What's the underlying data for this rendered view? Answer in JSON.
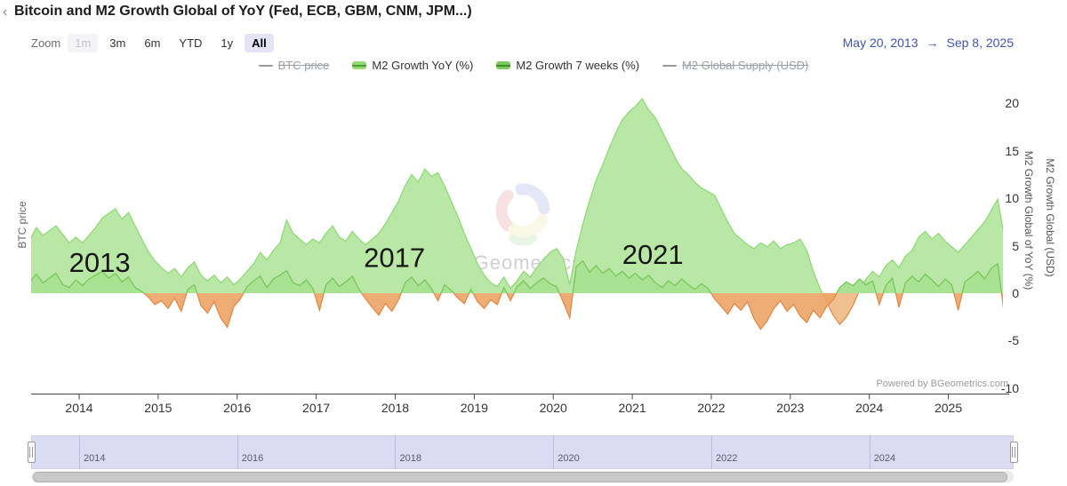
{
  "header": {
    "back_chevron": "‹",
    "title": "Bitcoin and M2 Growth Global of YoY (Fed, ECB, GBM, CNM, JPM...)"
  },
  "toolbar": {
    "zoom_label": "Zoom",
    "buttons": [
      {
        "label": "1m",
        "state": "disabled"
      },
      {
        "label": "3m",
        "state": "normal"
      },
      {
        "label": "6m",
        "state": "normal"
      },
      {
        "label": "YTD",
        "state": "normal"
      },
      {
        "label": "1y",
        "state": "normal"
      },
      {
        "label": "All",
        "state": "selected"
      }
    ],
    "range_from": "May 20, 2013",
    "range_arrow": "→",
    "range_to": "Sep 8, 2025",
    "range_color": "#4052b4"
  },
  "legend": {
    "items": [
      {
        "label": "BTC price",
        "marker": "line",
        "enabled": false,
        "color": "#9a9a9a"
      },
      {
        "label": "M2 Growth YoY (%)",
        "marker": "area",
        "enabled": true,
        "color": "#93d977",
        "line_color": "#4f9a34"
      },
      {
        "label": "M2 Growth 7 weeks (%)",
        "marker": "area",
        "enabled": true,
        "color": "#7ccb5e",
        "line_color": "#3f8c28"
      },
      {
        "label": "M2 Global Supply (USD)",
        "marker": "line",
        "enabled": false,
        "color": "#9a9a9a"
      }
    ]
  },
  "axes": {
    "left_title": "BTC price",
    "right_title_inner": "M2 Growth Global of YoY (%)",
    "right_title_outer": "M2 Growth Global (USD)"
  },
  "watermark": {
    "text": "BGeometrics",
    "text_color": "#c9cec9",
    "blade_colors": [
      "#ccd1ee",
      "#f2c4c8",
      "#f5f1cd",
      "#d5ecce"
    ]
  },
  "powered_by": "Powered by BGeometrics.com",
  "chart_data": {
    "type": "area",
    "title": "Bitcoin and M2 Growth Global of YoY (Fed, ECB, GBM, CNM, JPM...)",
    "x_unit": "decimal_year",
    "x_start_year": 2013.375,
    "x_step_years": 0.083333,
    "x_axis_ticks": [
      2014,
      2015,
      2016,
      2017,
      2018,
      2019,
      2020,
      2021,
      2022,
      2023,
      2024,
      2025
    ],
    "y_axis_ticks": [
      20,
      15,
      10,
      5,
      0,
      -5,
      -10
    ],
    "ylim": [
      -10,
      22
    ],
    "legend_position": "top-center",
    "grid": false,
    "annotations": [
      {
        "label": "2013",
        "x": 2014.26,
        "y": 3.3
      },
      {
        "label": "2017",
        "x": 2017.99,
        "y": 3.8
      },
      {
        "label": "2021",
        "x": 2021.26,
        "y": 4.1
      }
    ],
    "navigator_years": [
      2014,
      2016,
      2018,
      2020,
      2022,
      2024
    ],
    "series": [
      {
        "name": "BTC price",
        "type": "line",
        "visible": false,
        "color": "#9a9a9a",
        "values": []
      },
      {
        "name": "M2 Growth YoY (%)",
        "type": "area",
        "visible": true,
        "color_line": "#90d977",
        "color_fill": "#b9e8a6",
        "negative_line": "#e28a4a",
        "negative_fill": "#f0b984",
        "values": [
          5.6,
          6.9,
          6.1,
          6.6,
          7.1,
          6.2,
          5.3,
          5.9,
          5.3,
          6.1,
          6.9,
          7.9,
          8.4,
          8.9,
          7.8,
          8.5,
          7.1,
          5.7,
          4.4,
          3.4,
          2.7,
          2.1,
          2.6,
          1.7,
          2.7,
          3.3,
          1.9,
          1.3,
          1.9,
          1.1,
          1.7,
          0.9,
          1.5,
          2.3,
          3.1,
          4.3,
          3.5,
          4.5,
          5.3,
          7.7,
          6.3,
          5.7,
          5.1,
          5.7,
          5.3,
          6.3,
          7.1,
          5.9,
          5.5,
          6.5,
          5.7,
          5.1,
          5.7,
          6.3,
          7.3,
          8.5,
          9.7,
          11.3,
          12.5,
          11.7,
          13.1,
          12.3,
          12.7,
          11.3,
          9.7,
          8.1,
          6.3,
          4.7,
          3.1,
          1.9,
          1.1,
          0.7,
          1.7,
          0.5,
          1.3,
          2.3,
          1.7,
          2.7,
          3.5,
          4.3,
          4.7,
          3.7,
          0.9,
          4.5,
          7.3,
          9.7,
          11.9,
          13.5,
          15.3,
          16.9,
          18.3,
          19.1,
          19.7,
          20.5,
          19.3,
          18.5,
          17.1,
          15.7,
          14.3,
          13.1,
          12.5,
          11.7,
          11.1,
          10.7,
          10.3,
          8.9,
          7.5,
          6.3,
          5.7,
          5.1,
          4.7,
          5.3,
          4.9,
          5.5,
          4.7,
          5.1,
          5.3,
          5.7,
          4.5,
          2.3,
          0.5,
          -0.9,
          -2.3,
          -3.3,
          -2.5,
          -1.3,
          0.3,
          1.5,
          2.3,
          1.7,
          2.9,
          3.5,
          2.7,
          3.9,
          4.5,
          5.9,
          6.5,
          5.7,
          6.3,
          5.5,
          4.9,
          4.3,
          5.1,
          5.9,
          6.7,
          7.5,
          8.7,
          9.9,
          5.9
        ]
      },
      {
        "name": "M2 Growth 7 weeks (%)",
        "type": "area",
        "visible": true,
        "color_line": "#77c858",
        "color_fill": "#a9e292",
        "negative_line": "#e28a4a",
        "negative_fill": "#eba465",
        "values": [
          1.2,
          2.0,
          1.1,
          1.6,
          2.1,
          0.9,
          0.6,
          1.4,
          0.8,
          1.5,
          1.9,
          2.3,
          1.6,
          2.1,
          1.2,
          1.7,
          0.6,
          0.2,
          -0.4,
          -1.2,
          -0.8,
          -1.6,
          -0.5,
          -1.9,
          0.4,
          0.9,
          -1.3,
          -2.1,
          -0.9,
          -2.6,
          -3.6,
          -1.4,
          -0.6,
          0.7,
          1.3,
          1.8,
          0.6,
          1.5,
          1.9,
          2.4,
          1.1,
          0.8,
          1.4,
          0.5,
          -1.8,
          0.9,
          1.6,
          0.7,
          1.2,
          1.8,
          0.4,
          -0.6,
          -1.5,
          -2.3,
          -1.1,
          -1.9,
          -0.7,
          1.1,
          1.7,
          0.8,
          1.4,
          0.5,
          -0.8,
          0.9,
          0.3,
          -0.5,
          -1.1,
          0.4,
          -0.9,
          -1.6,
          -0.7,
          -1.2,
          0.6,
          -0.8,
          0.7,
          1.3,
          0.5,
          1.1,
          1.6,
          1.0,
          0.7,
          -0.9,
          -2.6,
          2.8,
          3.4,
          2.2,
          2.9,
          2.1,
          2.6,
          1.8,
          2.3,
          1.6,
          2.1,
          1.4,
          1.9,
          1.1,
          0.6,
          1.3,
          0.8,
          1.5,
          0.9,
          0.4,
          1.0,
          0.5,
          -0.6,
          -1.4,
          -2.2,
          -1.1,
          -1.8,
          -0.9,
          -2.7,
          -3.8,
          -2.9,
          -1.6,
          -0.8,
          -1.9,
          -1.2,
          -2.4,
          -3.1,
          -1.8,
          -2.6,
          -1.4,
          -0.7,
          0.6,
          1.2,
          0.8,
          1.5,
          0.9,
          1.3,
          -1.2,
          0.8,
          1.6,
          -1.5,
          1.1,
          1.8,
          1.2,
          2.0,
          1.4,
          0.7,
          1.5,
          0.9,
          -1.8,
          1.2,
          1.7,
          2.3,
          1.5,
          2.6,
          3.1,
          -2.2
        ]
      },
      {
        "name": "M2 Global Supply (USD)",
        "type": "line",
        "visible": false,
        "color": "#9a9a9a",
        "values": []
      }
    ]
  }
}
